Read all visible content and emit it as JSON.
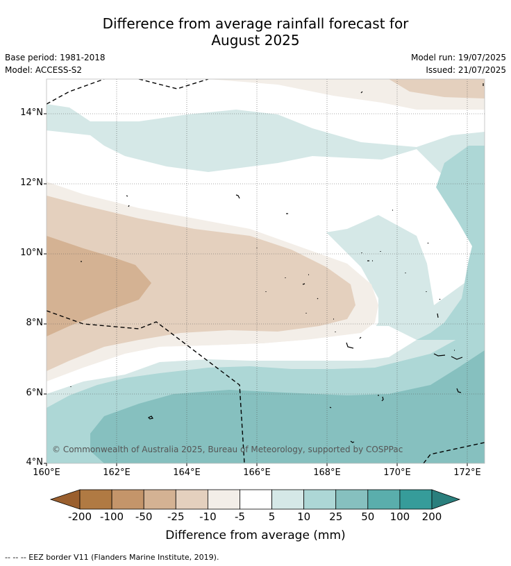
{
  "title_line1": "Difference from average rainfall forecast for",
  "title_line2": "August 2025",
  "base_period": "Base period: 1981-2018",
  "model": "Model: ACCESS-S2",
  "model_run": "Model run: 19/07/2025",
  "issued": "Issued: 21/07/2025",
  "lat_labels": [
    "14°N",
    "12°N",
    "10°N",
    "8°N",
    "6°N",
    "4°N"
  ],
  "lon_labels": [
    "160°E",
    "162°E",
    "164°E",
    "166°E",
    "168°E",
    "170°E",
    "172°E"
  ],
  "copyright": "© Commonwealth of Australia 2025, Bureau of Meteorology, supported by COSPPac",
  "colorbar": {
    "labels": [
      "-200",
      "-100",
      "-50",
      "-25",
      "-10",
      "-5",
      "5",
      "10",
      "25",
      "50",
      "100",
      "200"
    ],
    "colors": [
      "#9a5f2e",
      "#b07a43",
      "#c4956a",
      "#d4b293",
      "#e4d0be",
      "#f3eee8",
      "#ffffff",
      "#d5e8e7",
      "#add7d6",
      "#86c0bf",
      "#5aaeac",
      "#369c9a",
      "#2a7f7d"
    ],
    "title": "Difference from average (mm)"
  },
  "footer": "--  --  -- EEZ border V11 (Flanders Marine Institute, 2019)."
}
